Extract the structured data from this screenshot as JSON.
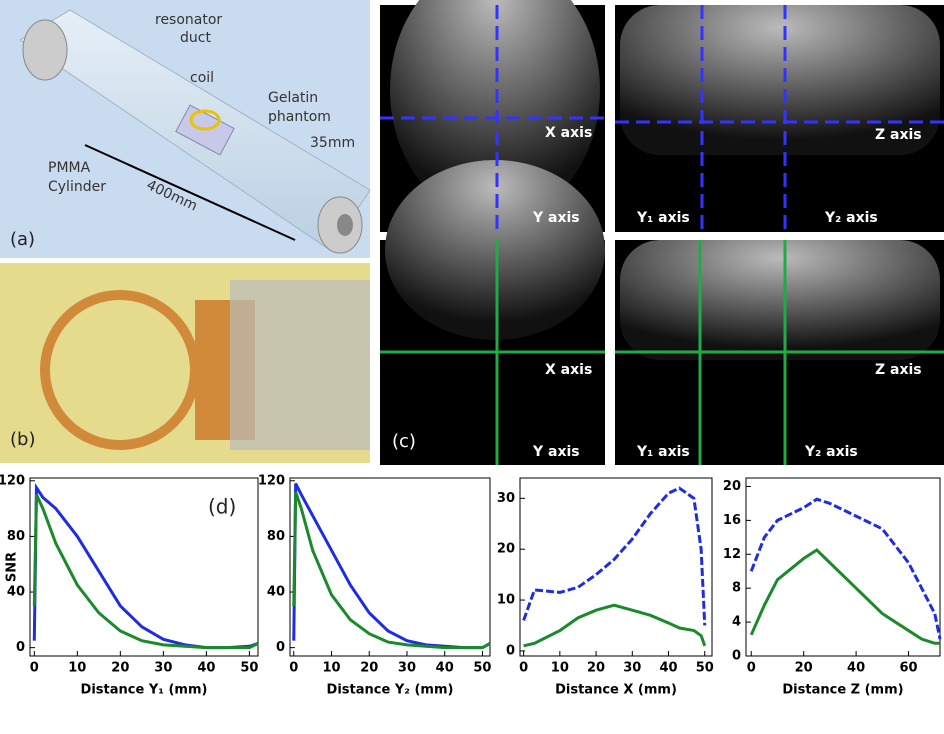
{
  "panel_a": {
    "label": "(a)",
    "resonator_duct": [
      "resonator",
      "duct"
    ],
    "coil": "coil",
    "phantom": [
      "Gelatin",
      "phantom"
    ],
    "cylinder": [
      "PMMA",
      "Cylinder"
    ],
    "length": "400mm",
    "diameter": "35mm"
  },
  "panel_b": {
    "label": "(b)"
  },
  "panel_c": {
    "label": "(c)",
    "x_axis": "X axis",
    "y_axis": "Y axis",
    "z_axis": "Z axis",
    "y1_axis": "Y₁ axis",
    "y2_axis": "Y₂ axis"
  },
  "chart_data": [
    {
      "type": "line",
      "annotation": "(d)",
      "ylabel": "SNR",
      "xlabel": "Distance Y₁ (mm)",
      "xlim": [
        -1,
        52
      ],
      "ylim": [
        -6,
        122
      ],
      "xticks": [
        0,
        10,
        20,
        30,
        40,
        50
      ],
      "yticks": [
        0,
        40,
        80,
        120
      ],
      "x": [
        0,
        0.5,
        2,
        5,
        10,
        15,
        20,
        25,
        30,
        35,
        40,
        45,
        50,
        52
      ],
      "series": [
        {
          "color": "#1f2de0",
          "dashed": false,
          "values": [
            5,
            115,
            108,
            100,
            80,
            55,
            30,
            15,
            6,
            2,
            0,
            0,
            1,
            3
          ]
        },
        {
          "color": "#1a8a2a",
          "dashed": false,
          "values": [
            30,
            110,
            100,
            75,
            45,
            25,
            12,
            5,
            2,
            1,
            0,
            0,
            0,
            3
          ]
        }
      ]
    },
    {
      "type": "line",
      "xlabel": "Distance Y₂ (mm)",
      "xlim": [
        -1,
        52
      ],
      "ylim": [
        -6,
        122
      ],
      "xticks": [
        0,
        10,
        20,
        30,
        40,
        50
      ],
      "yticks": [
        0,
        40,
        80,
        120
      ],
      "x": [
        0,
        0.5,
        2,
        5,
        10,
        15,
        20,
        25,
        30,
        35,
        40,
        45,
        50,
        52
      ],
      "series": [
        {
          "color": "#1f2de0",
          "dashed": false,
          "values": [
            5,
            118,
            110,
            95,
            70,
            45,
            25,
            12,
            5,
            2,
            1,
            0,
            0,
            3
          ]
        },
        {
          "color": "#1a8a2a",
          "dashed": false,
          "values": [
            30,
            112,
            100,
            70,
            38,
            20,
            10,
            4,
            2,
            1,
            0,
            0,
            0,
            3
          ]
        }
      ]
    },
    {
      "type": "line",
      "xlabel": "Distance X (mm)",
      "xlim": [
        -1,
        52
      ],
      "ylim": [
        -1,
        34
      ],
      "xticks": [
        0,
        10,
        20,
        30,
        40,
        50
      ],
      "yticks": [
        0,
        10,
        20,
        30
      ],
      "x": [
        0,
        3,
        10,
        15,
        20,
        25,
        30,
        35,
        40,
        43,
        47,
        49,
        50
      ],
      "series": [
        {
          "color": "#1f2de0",
          "dashed": true,
          "values": [
            6,
            12,
            11.5,
            12.5,
            15,
            18,
            22,
            27,
            31,
            32,
            30,
            20,
            5
          ]
        },
        {
          "color": "#1a8a2a",
          "dashed": false,
          "values": [
            1,
            1.5,
            4,
            6.5,
            8,
            9,
            8,
            7,
            5.5,
            4.5,
            4,
            3,
            1
          ]
        }
      ]
    },
    {
      "type": "line",
      "xlabel": "Distance Z (mm)",
      "xlim": [
        -2,
        72
      ],
      "ylim": [
        0,
        21
      ],
      "xticks": [
        0,
        20,
        40,
        60
      ],
      "yticks": [
        0,
        4,
        8,
        12,
        16,
        20
      ],
      "x": [
        0,
        5,
        10,
        20,
        25,
        30,
        40,
        50,
        55,
        60,
        65,
        70,
        72
      ],
      "series": [
        {
          "color": "#1f2de0",
          "dashed": true,
          "values": [
            10,
            14,
            16,
            17.5,
            18.5,
            18,
            16.5,
            15,
            13,
            11,
            8,
            5,
            2
          ]
        },
        {
          "color": "#1a8a2a",
          "dashed": false,
          "values": [
            2.5,
            6,
            9,
            11.5,
            12.5,
            11,
            8,
            5,
            4,
            3,
            2,
            1.5,
            1.5
          ]
        }
      ]
    }
  ]
}
